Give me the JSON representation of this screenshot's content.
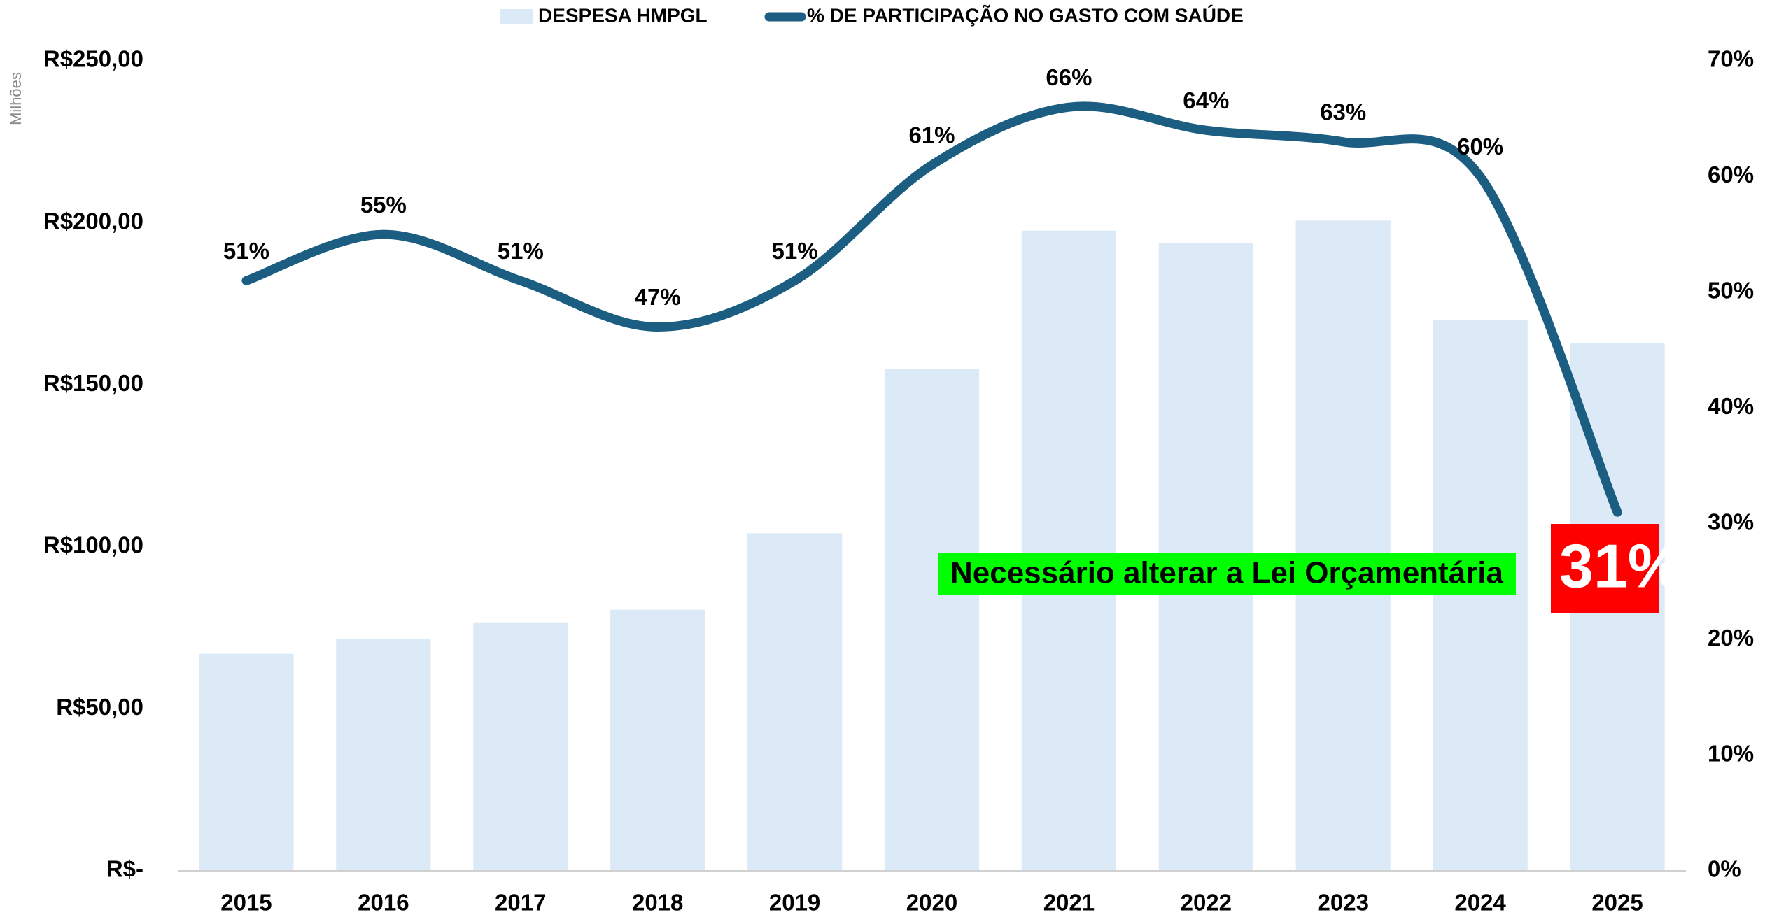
{
  "chart_data": {
    "type": "combo",
    "categories": [
      "2015",
      "2016",
      "2017",
      "2018",
      "2019",
      "2020",
      "2021",
      "2022",
      "2023",
      "2024",
      "2025"
    ],
    "series": [
      {
        "name": "DESPESA HMPGL",
        "type": "bar",
        "color": "#dce9f6",
        "values": [
          67.0,
          71.5,
          76.7,
          80.6,
          104.2,
          154.9,
          197.6,
          193.8,
          200.7,
          170.1,
          162.8
        ]
      },
      {
        "name": "% DE PARTICIPAÇÃO NO GASTO COM SAÚDE",
        "type": "line",
        "axis": "y2",
        "color": "#1b5e82",
        "values": [
          51,
          55,
          51,
          47,
          51,
          61,
          66,
          64,
          63,
          60,
          31
        ],
        "value_labels": [
          "51%",
          "55%",
          "51%",
          "47%",
          "51%",
          "61%",
          "66%",
          "64%",
          "63%",
          "60%",
          "31%"
        ]
      }
    ],
    "ylabel": "Milhões",
    "ylim": [
      0,
      250
    ],
    "yticks": [
      {
        "value": 0,
        "label": "R$-"
      },
      {
        "value": 50,
        "label": "R$50,00"
      },
      {
        "value": 100,
        "label": "R$100,00"
      },
      {
        "value": 150,
        "label": "R$150,00"
      },
      {
        "value": 200,
        "label": "R$200,00"
      },
      {
        "value": 250,
        "label": "R$250,00"
      }
    ],
    "y2lim": [
      0,
      70
    ],
    "y2ticks": [
      {
        "value": 0,
        "label": "0%"
      },
      {
        "value": 10,
        "label": "10%"
      },
      {
        "value": 20,
        "label": "20%"
      },
      {
        "value": 30,
        "label": "30%"
      },
      {
        "value": 40,
        "label": "40%"
      },
      {
        "value": 50,
        "label": "50%"
      },
      {
        "value": 60,
        "label": "60%"
      },
      {
        "value": 70,
        "label": "70%"
      }
    ],
    "annotation": "Necessário alterar a Lei Orçamentária",
    "legend": "top",
    "grid": false
  }
}
